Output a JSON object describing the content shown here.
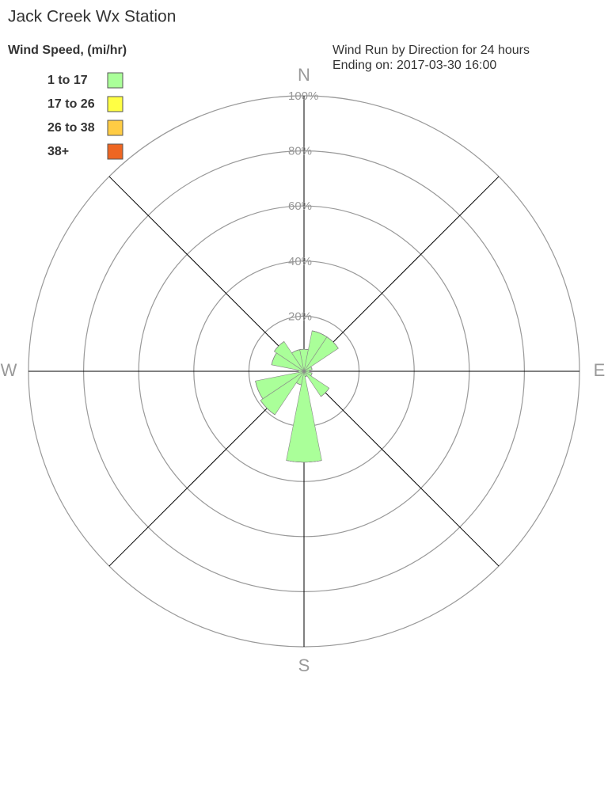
{
  "chart_data": {
    "type": "rose",
    "title": "Jack Creek Wx Station",
    "legend_title": "Wind Speed, (mi/hr)",
    "subtitle": [
      "Wind Run by Direction for 24 hours",
      "Ending on: 2017-03-30 16:00"
    ],
    "categories": [
      "N",
      null,
      null,
      null,
      "E",
      null,
      null,
      null,
      "S",
      null,
      null,
      null,
      "W",
      null,
      null,
      null
    ],
    "series": [
      {
        "name": "1 to 17",
        "color": "#aaff99",
        "values": [
          8,
          15,
          15,
          3,
          2,
          3,
          11,
          2,
          33,
          5,
          19,
          18,
          2,
          12,
          13,
          8
        ]
      },
      {
        "name": "17 to 26",
        "color": "#ffff44",
        "values": [
          0,
          0,
          0,
          0,
          0,
          0,
          0,
          0,
          0,
          0,
          0,
          0,
          0,
          0,
          0,
          0
        ]
      },
      {
        "name": "26 to 38",
        "color": "#ffcc44",
        "values": [
          0,
          0,
          0,
          0,
          0,
          0,
          0,
          0,
          0,
          0,
          0,
          0,
          0,
          0,
          0,
          0
        ]
      },
      {
        "name": "38+",
        "color": "#ee6622",
        "values": [
          0,
          0,
          0,
          0,
          0,
          0,
          0,
          0,
          0,
          0,
          0,
          0,
          0,
          0,
          0,
          0
        ]
      }
    ],
    "rlim": [
      0,
      100
    ],
    "rticks": [
      {
        "value": 20,
        "label": "20%"
      },
      {
        "value": 40,
        "label": "40%"
      },
      {
        "value": 60,
        "label": "60%"
      },
      {
        "value": 80,
        "label": "80%"
      },
      {
        "value": 100,
        "label": "100%"
      }
    ]
  }
}
